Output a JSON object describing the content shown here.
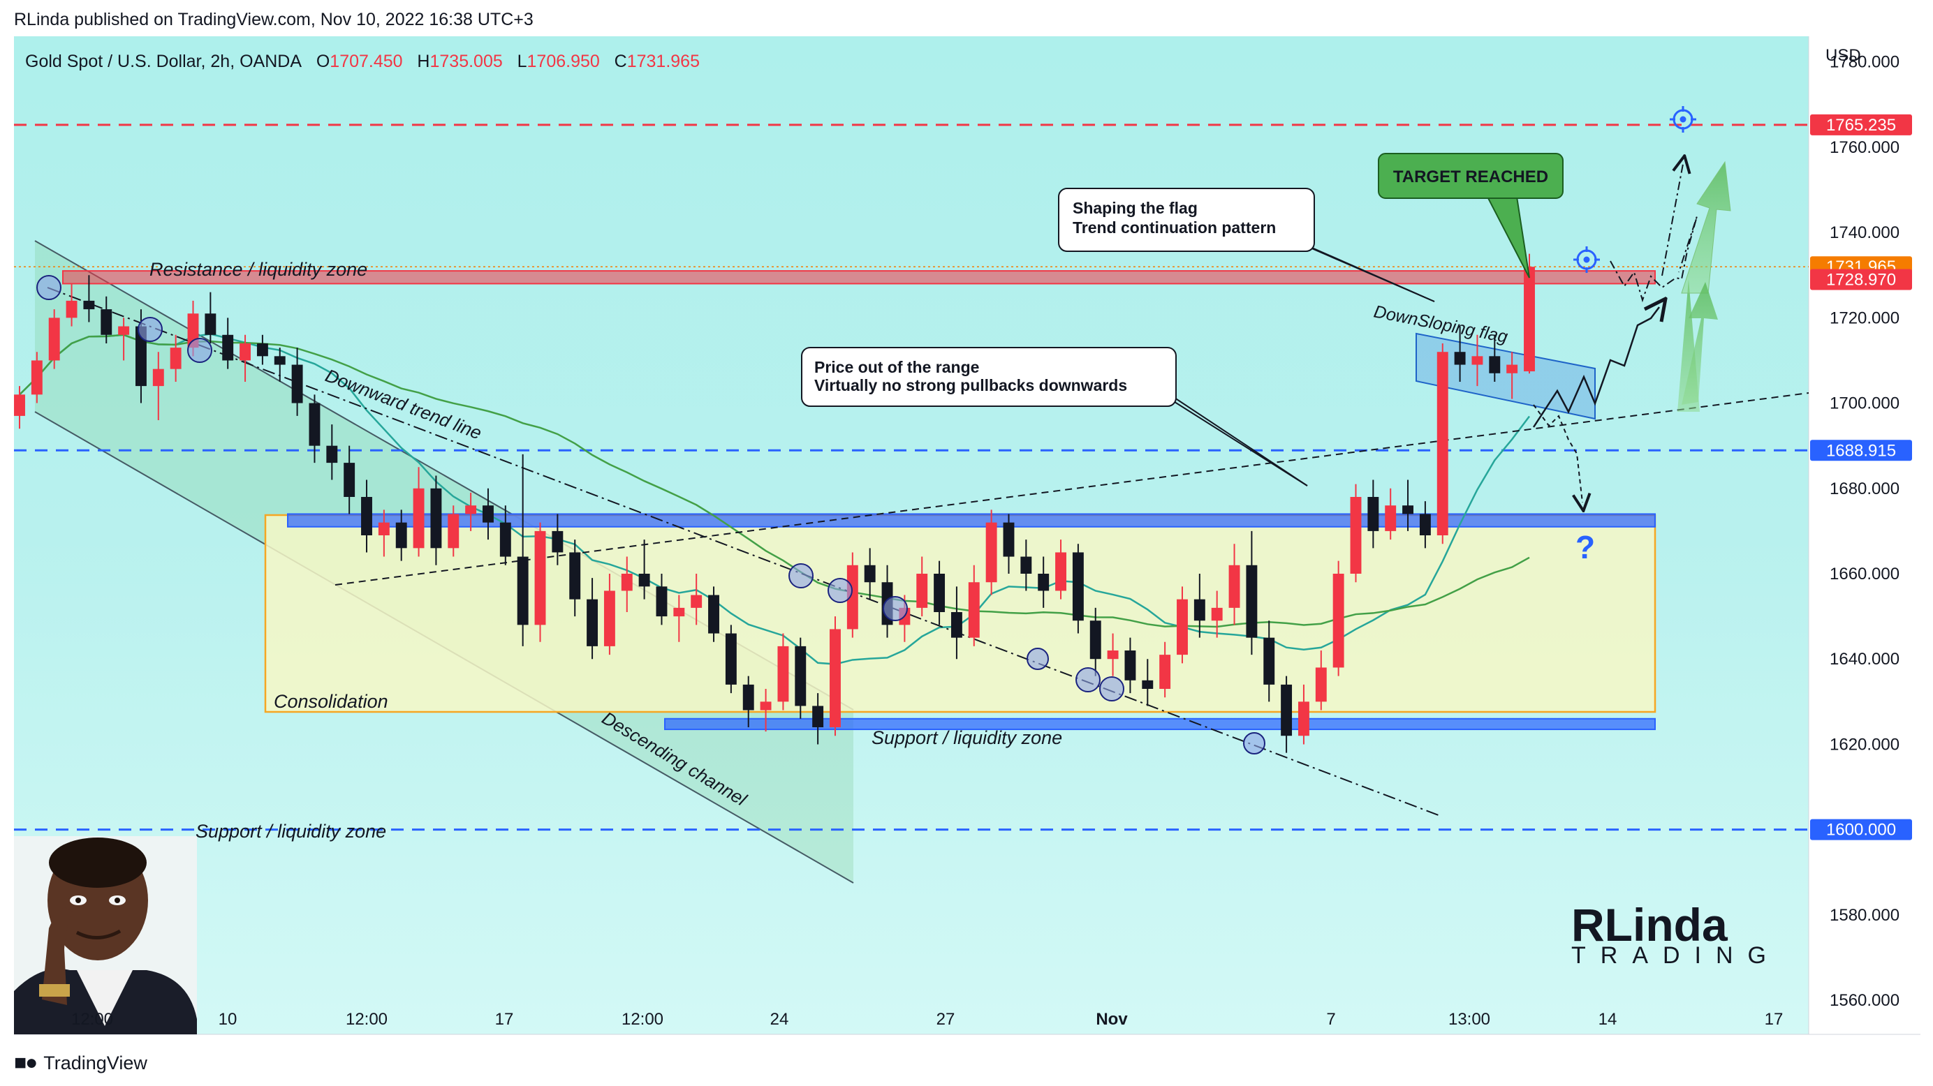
{
  "header": {
    "publisher_line": "RLinda published on TradingView.com, Nov 10, 2022 16:38 UTC+3"
  },
  "footer": {
    "brand": "TradingView",
    "icon": "tradingview-logo-icon"
  },
  "symbol_bar": {
    "name": "Gold Spot / U.S. Dollar, 2h, OANDA",
    "open_label": "O",
    "open": "1707.450",
    "high_label": "H",
    "high": "1735.005",
    "low_label": "L",
    "low": "1706.950",
    "close_label": "C",
    "close": "1731.965"
  },
  "chart_data": {
    "type": "candlestick",
    "currency": "USD",
    "ylim": [
      1552,
      1786
    ],
    "y_ticks": [
      "1780.000",
      "1760.000",
      "1740.000",
      "1720.000",
      "1700.000",
      "1680.000",
      "1660.000",
      "1640.000",
      "1620.000",
      "1600.000",
      "1580.000",
      "1560.000"
    ],
    "x_ticks": [
      "12:00",
      "10",
      "12:00",
      "17",
      "12:00",
      "24",
      "27",
      "Nov",
      "7",
      "13:00",
      "14",
      "17"
    ],
    "price_badges": [
      {
        "label": "1765.235",
        "value": 1765.235,
        "color": "#f23645"
      },
      {
        "label": "1731.965",
        "value": 1731.965,
        "color": "#f57c00"
      },
      {
        "label": "1728.970",
        "value": 1728.97,
        "color": "#f23645"
      },
      {
        "label": "1688.915",
        "value": 1688.915,
        "color": "#2962ff"
      },
      {
        "label": "1600.000",
        "value": 1600.0,
        "color": "#2962ff"
      }
    ],
    "horizontal_levels": [
      {
        "value": 1765.235,
        "color": "#f23645",
        "style": "dashed"
      },
      {
        "value": 1731.965,
        "color": "#f57c00",
        "style": "dotted"
      },
      {
        "value": 1688.915,
        "color": "#2962ff",
        "style": "dashed"
      },
      {
        "value": 1600.0,
        "color": "#2962ff",
        "style": "dashed"
      }
    ],
    "zones": [
      {
        "name": "resistance",
        "from": 1728.0,
        "to": 1731.0,
        "color": "#f23645"
      },
      {
        "name": "consolidation",
        "from": 1626.0,
        "to": 1672.0,
        "color": "#f5a623"
      },
      {
        "name": "range-top",
        "from": 1671.0,
        "to": 1674.0,
        "color": "#2962ff"
      },
      {
        "name": "range-bottom",
        "from": 1623.5,
        "to": 1626.0,
        "color": "#2962ff"
      }
    ],
    "annotations": {
      "resistance": "Resistance / liquidity zone",
      "downward_trend": "Downward trend line",
      "consolidation": "Consolidation",
      "descending_channel": "Descending channel",
      "support_zone_mid": "Support / liquidity zone",
      "support_zone_low": "Support / liquidity zone",
      "flag": "DownSloping flag",
      "question": "?"
    },
    "callouts": {
      "target": "TARGET REACHED",
      "flag_line1": "Shaping the flag",
      "flag_line2": "Trend continuation pattern",
      "range_line1": "Price out of the range",
      "range_line2": "Virtually no strong pullbacks downwards"
    },
    "candles": [
      [
        1697,
        1704,
        1694,
        1702
      ],
      [
        1702,
        1712,
        1700,
        1710
      ],
      [
        1710,
        1722,
        1708,
        1720
      ],
      [
        1720,
        1728,
        1718,
        1724
      ],
      [
        1724,
        1730,
        1719,
        1722
      ],
      [
        1722,
        1725,
        1714,
        1716
      ],
      [
        1716,
        1720,
        1710,
        1718
      ],
      [
        1718,
        1722,
        1700,
        1704
      ],
      [
        1704,
        1712,
        1696,
        1708
      ],
      [
        1708,
        1716,
        1705,
        1713
      ],
      [
        1713,
        1724,
        1711,
        1721
      ],
      [
        1721,
        1726,
        1714,
        1716
      ],
      [
        1716,
        1720,
        1708,
        1710
      ],
      [
        1710,
        1716,
        1705,
        1714
      ],
      [
        1714,
        1716,
        1709,
        1711
      ],
      [
        1711,
        1713,
        1705,
        1709
      ],
      [
        1709,
        1713,
        1697,
        1700
      ],
      [
        1700,
        1702,
        1686,
        1690
      ],
      [
        1690,
        1695,
        1682,
        1686
      ],
      [
        1686,
        1690,
        1674,
        1678
      ],
      [
        1678,
        1682,
        1665,
        1669
      ],
      [
        1669,
        1675,
        1664,
        1672
      ],
      [
        1672,
        1675,
        1663,
        1666
      ],
      [
        1666,
        1685,
        1664,
        1680
      ],
      [
        1680,
        1683,
        1662,
        1666
      ],
      [
        1666,
        1676,
        1664,
        1674
      ],
      [
        1674,
        1679,
        1670,
        1676
      ],
      [
        1676,
        1680,
        1668,
        1672
      ],
      [
        1672,
        1676,
        1662,
        1664
      ],
      [
        1664,
        1688,
        1643,
        1648
      ],
      [
        1648,
        1672,
        1644,
        1670
      ],
      [
        1670,
        1674,
        1662,
        1665
      ],
      [
        1665,
        1668,
        1650,
        1654
      ],
      [
        1654,
        1659,
        1640,
        1643
      ],
      [
        1643,
        1660,
        1641,
        1656
      ],
      [
        1656,
        1664,
        1651,
        1660
      ],
      [
        1660,
        1668,
        1654,
        1657
      ],
      [
        1657,
        1660,
        1648,
        1650
      ],
      [
        1650,
        1655,
        1644,
        1652
      ],
      [
        1652,
        1660,
        1648,
        1655
      ],
      [
        1655,
        1657,
        1644,
        1646
      ],
      [
        1646,
        1648,
        1632,
        1634
      ],
      [
        1634,
        1636,
        1624,
        1628
      ],
      [
        1628,
        1633,
        1623,
        1630
      ],
      [
        1630,
        1646,
        1628,
        1643
      ],
      [
        1643,
        1645,
        1626,
        1629
      ],
      [
        1629,
        1632,
        1620,
        1624
      ],
      [
        1624,
        1650,
        1622,
        1647
      ],
      [
        1647,
        1665,
        1645,
        1662
      ],
      [
        1662,
        1666,
        1654,
        1658
      ],
      [
        1658,
        1662,
        1645,
        1648
      ],
      [
        1648,
        1655,
        1644,
        1652
      ],
      [
        1652,
        1664,
        1650,
        1660
      ],
      [
        1660,
        1663,
        1648,
        1651
      ],
      [
        1651,
        1657,
        1640,
        1645
      ],
      [
        1645,
        1662,
        1643,
        1658
      ],
      [
        1658,
        1675,
        1655,
        1672
      ],
      [
        1672,
        1674,
        1660,
        1664
      ],
      [
        1664,
        1668,
        1656,
        1660
      ],
      [
        1660,
        1664,
        1652,
        1656
      ],
      [
        1656,
        1668,
        1654,
        1665
      ],
      [
        1665,
        1667,
        1646,
        1649
      ],
      [
        1649,
        1652,
        1636,
        1640
      ],
      [
        1640,
        1646,
        1636,
        1642
      ],
      [
        1642,
        1645,
        1632,
        1635
      ],
      [
        1635,
        1640,
        1629,
        1633
      ],
      [
        1633,
        1644,
        1631,
        1641
      ],
      [
        1641,
        1657,
        1639,
        1654
      ],
      [
        1654,
        1660,
        1645,
        1649
      ],
      [
        1649,
        1656,
        1645,
        1652
      ],
      [
        1652,
        1667,
        1648,
        1662
      ],
      [
        1662,
        1670,
        1641,
        1645
      ],
      [
        1645,
        1649,
        1630,
        1634
      ],
      [
        1634,
        1636,
        1618,
        1622
      ],
      [
        1622,
        1634,
        1620,
        1630
      ],
      [
        1630,
        1642,
        1628,
        1638
      ],
      [
        1638,
        1663,
        1636,
        1660
      ],
      [
        1660,
        1681,
        1658,
        1678
      ],
      [
        1678,
        1682,
        1666,
        1670
      ],
      [
        1670,
        1680,
        1668,
        1676
      ],
      [
        1676,
        1682,
        1670,
        1674
      ],
      [
        1674,
        1677,
        1666,
        1669
      ],
      [
        1669,
        1714,
        1667,
        1712
      ],
      [
        1712,
        1718,
        1705,
        1709
      ],
      [
        1709,
        1716,
        1704,
        1711
      ],
      [
        1711,
        1716,
        1705,
        1707
      ],
      [
        1707,
        1712,
        1701,
        1709
      ],
      [
        1707.45,
        1735.005,
        1706.95,
        1731.965
      ]
    ],
    "moving_averages": [
      {
        "name": "fast",
        "color": "#26a69a"
      },
      {
        "name": "slow",
        "color": "#43a047"
      }
    ]
  },
  "brand_logo": {
    "line1": "RLinda",
    "line2": "TRADING"
  }
}
